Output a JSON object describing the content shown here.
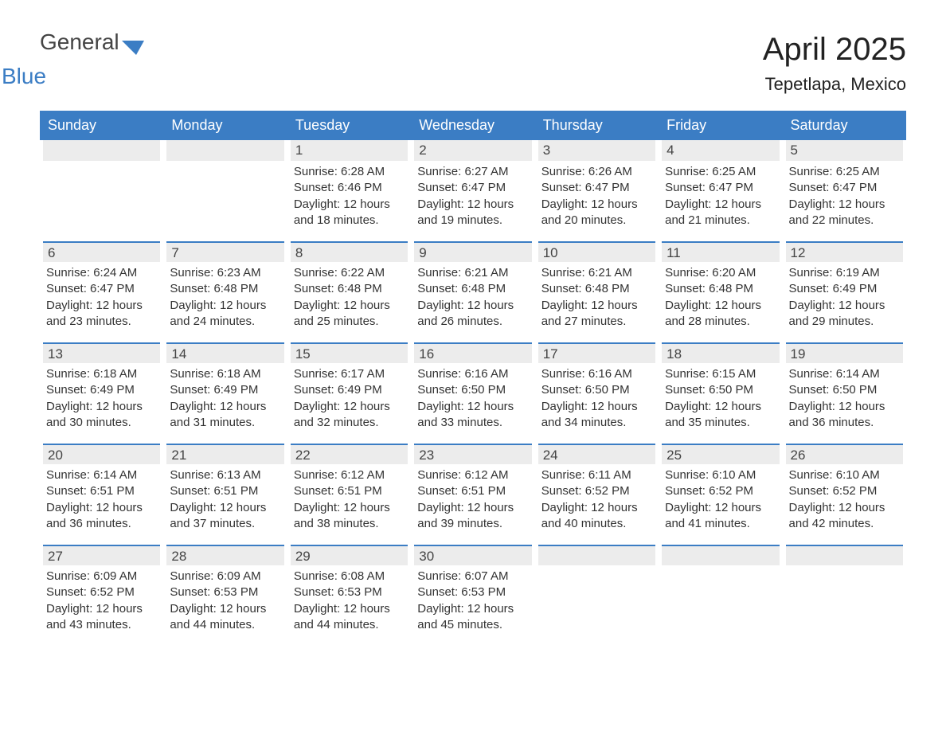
{
  "logo": {
    "general": "General",
    "blue": "Blue"
  },
  "title": "April 2025",
  "location": "Tepetlapa, Mexico",
  "colors": {
    "header_bg": "#3b7dc4",
    "header_text": "#ffffff",
    "daynum_bg": "#ececec",
    "border_top": "#3b7dc4",
    "text": "#333333",
    "background": "#ffffff"
  },
  "day_headers": [
    "Sunday",
    "Monday",
    "Tuesday",
    "Wednesday",
    "Thursday",
    "Friday",
    "Saturday"
  ],
  "weeks": [
    [
      null,
      null,
      {
        "n": "1",
        "sunrise": "Sunrise: 6:28 AM",
        "sunset": "Sunset: 6:46 PM",
        "daylight": "Daylight: 12 hours and 18 minutes."
      },
      {
        "n": "2",
        "sunrise": "Sunrise: 6:27 AM",
        "sunset": "Sunset: 6:47 PM",
        "daylight": "Daylight: 12 hours and 19 minutes."
      },
      {
        "n": "3",
        "sunrise": "Sunrise: 6:26 AM",
        "sunset": "Sunset: 6:47 PM",
        "daylight": "Daylight: 12 hours and 20 minutes."
      },
      {
        "n": "4",
        "sunrise": "Sunrise: 6:25 AM",
        "sunset": "Sunset: 6:47 PM",
        "daylight": "Daylight: 12 hours and 21 minutes."
      },
      {
        "n": "5",
        "sunrise": "Sunrise: 6:25 AM",
        "sunset": "Sunset: 6:47 PM",
        "daylight": "Daylight: 12 hours and 22 minutes."
      }
    ],
    [
      {
        "n": "6",
        "sunrise": "Sunrise: 6:24 AM",
        "sunset": "Sunset: 6:47 PM",
        "daylight": "Daylight: 12 hours and 23 minutes."
      },
      {
        "n": "7",
        "sunrise": "Sunrise: 6:23 AM",
        "sunset": "Sunset: 6:48 PM",
        "daylight": "Daylight: 12 hours and 24 minutes."
      },
      {
        "n": "8",
        "sunrise": "Sunrise: 6:22 AM",
        "sunset": "Sunset: 6:48 PM",
        "daylight": "Daylight: 12 hours and 25 minutes."
      },
      {
        "n": "9",
        "sunrise": "Sunrise: 6:21 AM",
        "sunset": "Sunset: 6:48 PM",
        "daylight": "Daylight: 12 hours and 26 minutes."
      },
      {
        "n": "10",
        "sunrise": "Sunrise: 6:21 AM",
        "sunset": "Sunset: 6:48 PM",
        "daylight": "Daylight: 12 hours and 27 minutes."
      },
      {
        "n": "11",
        "sunrise": "Sunrise: 6:20 AM",
        "sunset": "Sunset: 6:48 PM",
        "daylight": "Daylight: 12 hours and 28 minutes."
      },
      {
        "n": "12",
        "sunrise": "Sunrise: 6:19 AM",
        "sunset": "Sunset: 6:49 PM",
        "daylight": "Daylight: 12 hours and 29 minutes."
      }
    ],
    [
      {
        "n": "13",
        "sunrise": "Sunrise: 6:18 AM",
        "sunset": "Sunset: 6:49 PM",
        "daylight": "Daylight: 12 hours and 30 minutes."
      },
      {
        "n": "14",
        "sunrise": "Sunrise: 6:18 AM",
        "sunset": "Sunset: 6:49 PM",
        "daylight": "Daylight: 12 hours and 31 minutes."
      },
      {
        "n": "15",
        "sunrise": "Sunrise: 6:17 AM",
        "sunset": "Sunset: 6:49 PM",
        "daylight": "Daylight: 12 hours and 32 minutes."
      },
      {
        "n": "16",
        "sunrise": "Sunrise: 6:16 AM",
        "sunset": "Sunset: 6:50 PM",
        "daylight": "Daylight: 12 hours and 33 minutes."
      },
      {
        "n": "17",
        "sunrise": "Sunrise: 6:16 AM",
        "sunset": "Sunset: 6:50 PM",
        "daylight": "Daylight: 12 hours and 34 minutes."
      },
      {
        "n": "18",
        "sunrise": "Sunrise: 6:15 AM",
        "sunset": "Sunset: 6:50 PM",
        "daylight": "Daylight: 12 hours and 35 minutes."
      },
      {
        "n": "19",
        "sunrise": "Sunrise: 6:14 AM",
        "sunset": "Sunset: 6:50 PM",
        "daylight": "Daylight: 12 hours and 36 minutes."
      }
    ],
    [
      {
        "n": "20",
        "sunrise": "Sunrise: 6:14 AM",
        "sunset": "Sunset: 6:51 PM",
        "daylight": "Daylight: 12 hours and 36 minutes."
      },
      {
        "n": "21",
        "sunrise": "Sunrise: 6:13 AM",
        "sunset": "Sunset: 6:51 PM",
        "daylight": "Daylight: 12 hours and 37 minutes."
      },
      {
        "n": "22",
        "sunrise": "Sunrise: 6:12 AM",
        "sunset": "Sunset: 6:51 PM",
        "daylight": "Daylight: 12 hours and 38 minutes."
      },
      {
        "n": "23",
        "sunrise": "Sunrise: 6:12 AM",
        "sunset": "Sunset: 6:51 PM",
        "daylight": "Daylight: 12 hours and 39 minutes."
      },
      {
        "n": "24",
        "sunrise": "Sunrise: 6:11 AM",
        "sunset": "Sunset: 6:52 PM",
        "daylight": "Daylight: 12 hours and 40 minutes."
      },
      {
        "n": "25",
        "sunrise": "Sunrise: 6:10 AM",
        "sunset": "Sunset: 6:52 PM",
        "daylight": "Daylight: 12 hours and 41 minutes."
      },
      {
        "n": "26",
        "sunrise": "Sunrise: 6:10 AM",
        "sunset": "Sunset: 6:52 PM",
        "daylight": "Daylight: 12 hours and 42 minutes."
      }
    ],
    [
      {
        "n": "27",
        "sunrise": "Sunrise: 6:09 AM",
        "sunset": "Sunset: 6:52 PM",
        "daylight": "Daylight: 12 hours and 43 minutes."
      },
      {
        "n": "28",
        "sunrise": "Sunrise: 6:09 AM",
        "sunset": "Sunset: 6:53 PM",
        "daylight": "Daylight: 12 hours and 44 minutes."
      },
      {
        "n": "29",
        "sunrise": "Sunrise: 6:08 AM",
        "sunset": "Sunset: 6:53 PM",
        "daylight": "Daylight: 12 hours and 44 minutes."
      },
      {
        "n": "30",
        "sunrise": "Sunrise: 6:07 AM",
        "sunset": "Sunset: 6:53 PM",
        "daylight": "Daylight: 12 hours and 45 minutes."
      },
      null,
      null,
      null
    ]
  ]
}
